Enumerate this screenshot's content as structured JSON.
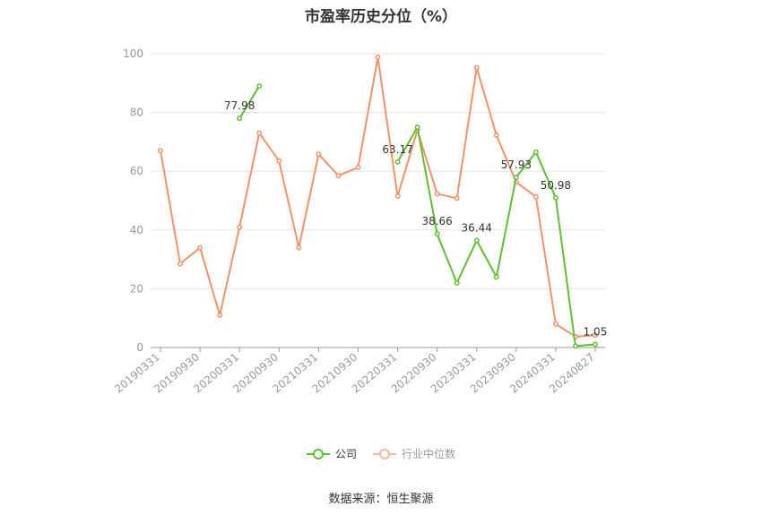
{
  "chart_data": {
    "type": "line",
    "title": "市盈率历史分位（%）",
    "ylim": [
      0,
      100
    ],
    "yticks": [
      0,
      20,
      40,
      60,
      80,
      100
    ],
    "x": [
      "20190331",
      "20190630",
      "20190930",
      "20191231",
      "20200331",
      "20200630",
      "20200930",
      "20201231",
      "20210331",
      "20210630",
      "20210930",
      "20211231",
      "20220331",
      "20220630",
      "20220930",
      "20221231",
      "20230331",
      "20230630",
      "20230930",
      "20231231",
      "20240331",
      "20240630",
      "20240827"
    ],
    "x_tick_labels": [
      "20190331",
      "20190930",
      "20200331",
      "20200930",
      "20210331",
      "20210930",
      "20220331",
      "20220930",
      "20230331",
      "20230930",
      "20240331",
      "20240827"
    ],
    "grid": true,
    "legend_position": "bottom",
    "series": [
      {
        "name": "公司",
        "color": "#5cc130",
        "values": [
          null,
          null,
          null,
          null,
          77.98,
          89.0,
          null,
          null,
          null,
          null,
          null,
          null,
          63.17,
          75.0,
          38.66,
          22.0,
          36.44,
          24.0,
          57.93,
          66.5,
          50.98,
          0.5,
          1.05
        ],
        "labels": {
          "4": "77.98",
          "12": "63.17",
          "14": "38.66",
          "16": "36.44",
          "18": "57.93",
          "20": "50.98",
          "22": "1.05"
        }
      },
      {
        "name": "行业中位数",
        "color": "#f39167",
        "values": [
          67,
          28.5,
          34,
          11,
          41,
          73,
          63.5,
          34,
          65.8,
          58.5,
          61.3,
          98.8,
          51.5,
          74,
          52.3,
          50.8,
          95.3,
          72.3,
          56.3,
          51.3,
          8,
          3.7,
          4.2
        ]
      }
    ]
  },
  "legend": {
    "company": "公司",
    "industry": "行业中位数"
  },
  "source": "数据来源：恒生聚源"
}
